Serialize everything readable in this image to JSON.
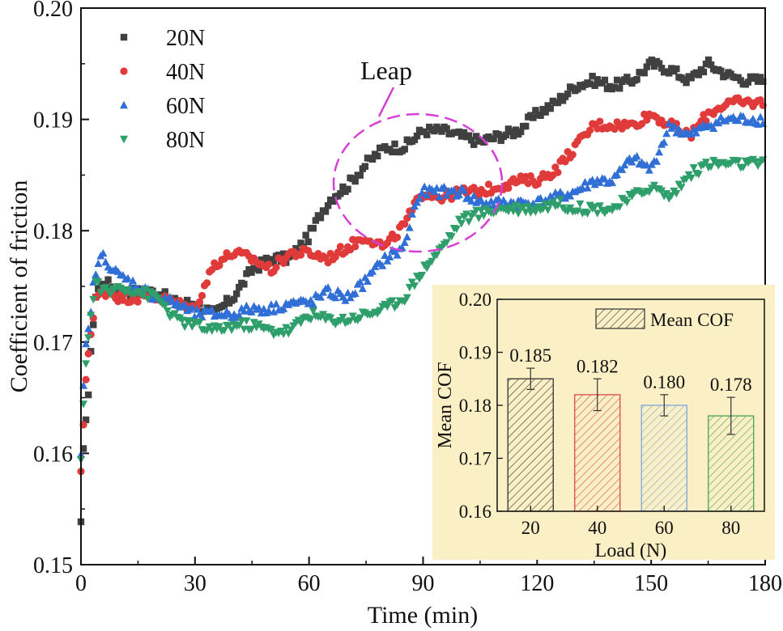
{
  "chart_data": [
    {
      "type": "scatter",
      "xlabel": "Time (min)",
      "ylabel": "Coefficient of friction",
      "xlim": [
        0,
        180
      ],
      "ylim": [
        0.15,
        0.2
      ],
      "xticks": [
        "0",
        "30",
        "60",
        "90",
        "120",
        "150",
        "180"
      ],
      "yticks": [
        "0.15",
        "0.16",
        "0.17",
        "0.18",
        "0.19",
        "0.20"
      ],
      "legend_placement": "top-left",
      "annotation": "Leap",
      "series": [
        {
          "name": "20N",
          "color": "#404040",
          "marker": "square",
          "x": [
            0,
            0.5,
            1,
            2,
            3,
            4,
            6,
            8,
            10,
            15,
            20,
            25,
            30,
            35,
            40,
            45,
            50,
            55,
            60,
            63,
            66,
            70,
            75,
            80,
            85,
            90,
            95,
            100,
            105,
            110,
            115,
            120,
            125,
            130,
            135,
            140,
            145,
            150,
            155,
            160,
            165,
            170,
            175,
            180
          ],
          "y": [
            0.1535,
            0.159,
            0.1625,
            0.1655,
            0.171,
            0.1745,
            0.1755,
            0.175,
            0.1745,
            0.1745,
            0.1745,
            0.1735,
            0.1735,
            0.1725,
            0.174,
            0.1765,
            0.1775,
            0.1775,
            0.1795,
            0.1815,
            0.183,
            0.184,
            0.186,
            0.1875,
            0.1875,
            0.189,
            0.189,
            0.1885,
            0.188,
            0.1885,
            0.189,
            0.1905,
            0.1915,
            0.193,
            0.1935,
            0.193,
            0.1935,
            0.195,
            0.1945,
            0.1935,
            0.195,
            0.194,
            0.1935,
            0.1935
          ]
        },
        {
          "name": "40N",
          "color": "#e03a3a",
          "marker": "circle",
          "x": [
            0,
            0.5,
            1,
            2,
            3,
            4,
            6,
            8,
            10,
            15,
            20,
            25,
            30,
            35,
            40,
            45,
            50,
            55,
            60,
            65,
            70,
            75,
            80,
            85,
            90,
            95,
            100,
            105,
            110,
            115,
            120,
            125,
            130,
            135,
            140,
            145,
            150,
            155,
            160,
            165,
            170,
            175,
            180
          ],
          "y": [
            0.158,
            0.1615,
            0.1655,
            0.1695,
            0.1715,
            0.174,
            0.1745,
            0.1745,
            0.174,
            0.174,
            0.174,
            0.1735,
            0.173,
            0.177,
            0.178,
            0.1775,
            0.1765,
            0.178,
            0.178,
            0.1775,
            0.1785,
            0.1795,
            0.1785,
            0.1805,
            0.1835,
            0.183,
            0.1835,
            0.1835,
            0.184,
            0.1845,
            0.1845,
            0.1855,
            0.1875,
            0.1895,
            0.1895,
            0.1895,
            0.1905,
            0.1895,
            0.1885,
            0.1905,
            0.1915,
            0.1915,
            0.1915
          ]
        },
        {
          "name": "60N",
          "color": "#2f6fd6",
          "marker": "triangle-up",
          "x": [
            0,
            0.5,
            1,
            2,
            3,
            4,
            6,
            8,
            10,
            15,
            20,
            25,
            30,
            35,
            40,
            45,
            50,
            55,
            60,
            65,
            70,
            75,
            80,
            85,
            88,
            90,
            95,
            100,
            105,
            110,
            115,
            120,
            125,
            130,
            135,
            140,
            145,
            150,
            155,
            160,
            165,
            170,
            175,
            180
          ],
          "y": [
            0.1595,
            0.1645,
            0.169,
            0.171,
            0.1745,
            0.1765,
            0.178,
            0.1765,
            0.176,
            0.175,
            0.174,
            0.1735,
            0.1725,
            0.1725,
            0.1725,
            0.173,
            0.173,
            0.1735,
            0.1735,
            0.1745,
            0.174,
            0.1755,
            0.1775,
            0.1785,
            0.1825,
            0.1835,
            0.1835,
            0.1835,
            0.1825,
            0.1825,
            0.1825,
            0.1825,
            0.183,
            0.1835,
            0.1845,
            0.1845,
            0.1865,
            0.1855,
            0.1895,
            0.1885,
            0.1895,
            0.19,
            0.19,
            0.19
          ]
        },
        {
          "name": "80N",
          "color": "#2e9e6a",
          "marker": "triangle-down",
          "x": [
            0,
            0.5,
            1,
            2,
            3,
            4,
            6,
            8,
            10,
            15,
            20,
            25,
            30,
            35,
            40,
            45,
            50,
            55,
            60,
            65,
            70,
            75,
            80,
            85,
            90,
            95,
            100,
            105,
            110,
            115,
            120,
            125,
            130,
            135,
            140,
            145,
            150,
            155,
            160,
            165,
            170,
            175,
            180
          ],
          "y": [
            0.159,
            0.1635,
            0.1675,
            0.1705,
            0.1735,
            0.1755,
            0.1745,
            0.1745,
            0.175,
            0.1745,
            0.174,
            0.172,
            0.1715,
            0.171,
            0.1715,
            0.1715,
            0.171,
            0.171,
            0.1725,
            0.172,
            0.172,
            0.1725,
            0.173,
            0.174,
            0.1765,
            0.1785,
            0.181,
            0.1815,
            0.182,
            0.182,
            0.182,
            0.1825,
            0.182,
            0.182,
            0.182,
            0.183,
            0.184,
            0.183,
            0.185,
            0.186,
            0.186,
            0.186,
            0.186
          ]
        }
      ]
    },
    {
      "type": "bar",
      "xlabel": "Load (N)",
      "ylabel": "Mean COF",
      "ylim": [
        0.16,
        0.2
      ],
      "yticks": [
        "0.16",
        "0.17",
        "0.18",
        "0.19",
        "0.20"
      ],
      "categories": [
        "20",
        "40",
        "60",
        "80"
      ],
      "values": [
        0.185,
        0.182,
        0.18,
        0.178
      ],
      "value_labels": [
        "0.185",
        "0.182",
        "0.180",
        "0.178"
      ],
      "errors": [
        0.002,
        0.003,
        0.002,
        0.0035
      ],
      "bar_colors": [
        "#333333",
        "#d94a4a",
        "#7aa6d9",
        "#4aa15a"
      ],
      "legend": "Mean COF",
      "legend_placement": "top-right",
      "background": "#fbefc5"
    }
  ]
}
